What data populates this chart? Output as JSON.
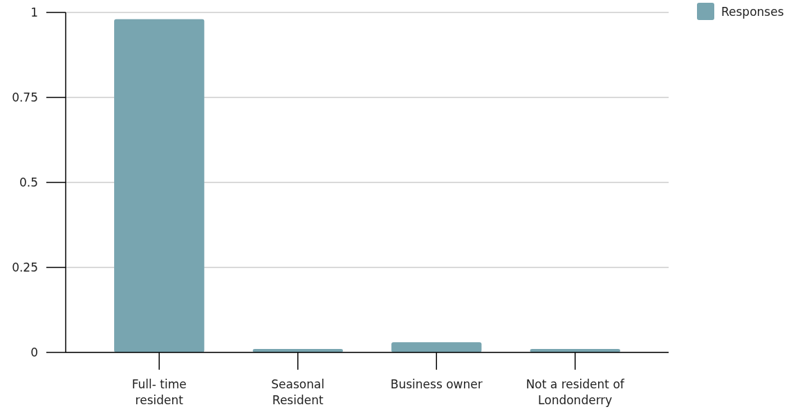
{
  "chart_data": {
    "type": "bar",
    "categories": [
      "Full- time\nresident",
      "Seasonal\nResident",
      "Business owner",
      "Not a resident of\nLondonderry"
    ],
    "series": [
      {
        "name": "Responses",
        "color": "#78a5b0",
        "values": [
          0.98,
          0.01,
          0.03,
          0.01
        ]
      }
    ],
    "ylim": [
      0,
      1
    ],
    "yticks": [
      0,
      0.25,
      0.5,
      0.75,
      1
    ],
    "grid": "y",
    "legend": "top right"
  }
}
